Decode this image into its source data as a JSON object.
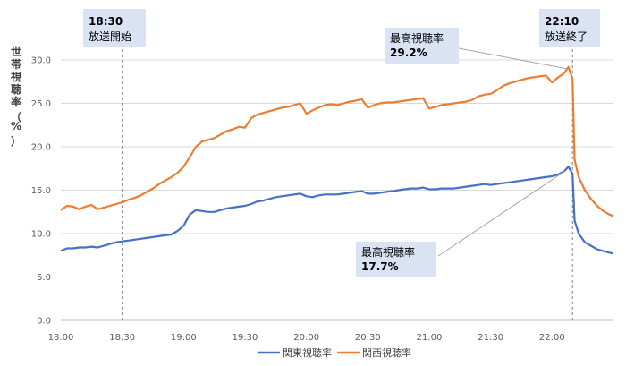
{
  "chart_data": {
    "type": "line",
    "ylabel": "世帯視聴率（%）",
    "ylim": [
      0,
      30
    ],
    "y_ticks": [
      "0.0",
      "5.0",
      "10.0",
      "15.0",
      "20.0",
      "25.0",
      "30.0"
    ],
    "x_ticks": [
      "18:00",
      "18:30",
      "19:00",
      "19:30",
      "20:00",
      "20:30",
      "21:00",
      "21:30",
      "22:00"
    ],
    "grid": true,
    "legend_position": "bottom",
    "series": [
      {
        "name": "関東視聴率",
        "color": "#4472c4",
        "points": [
          [
            "18:00",
            8.0
          ],
          [
            "18:03",
            8.3
          ],
          [
            "18:06",
            8.3
          ],
          [
            "18:09",
            8.4
          ],
          [
            "18:12",
            8.4
          ],
          [
            "18:15",
            8.5
          ],
          [
            "18:18",
            8.4
          ],
          [
            "18:21",
            8.6
          ],
          [
            "18:24",
            8.8
          ],
          [
            "18:27",
            9.0
          ],
          [
            "18:30",
            9.1
          ],
          [
            "18:33",
            9.2
          ],
          [
            "18:36",
            9.3
          ],
          [
            "18:39",
            9.4
          ],
          [
            "18:42",
            9.5
          ],
          [
            "18:45",
            9.6
          ],
          [
            "18:48",
            9.7
          ],
          [
            "18:51",
            9.8
          ],
          [
            "18:54",
            9.9
          ],
          [
            "18:57",
            10.3
          ],
          [
            "19:00",
            10.9
          ],
          [
            "19:03",
            12.2
          ],
          [
            "19:06",
            12.7
          ],
          [
            "19:09",
            12.6
          ],
          [
            "19:12",
            12.5
          ],
          [
            "19:15",
            12.5
          ],
          [
            "19:18",
            12.7
          ],
          [
            "19:21",
            12.9
          ],
          [
            "19:24",
            13.0
          ],
          [
            "19:27",
            13.1
          ],
          [
            "19:30",
            13.2
          ],
          [
            "19:33",
            13.4
          ],
          [
            "19:36",
            13.7
          ],
          [
            "19:39",
            13.8
          ],
          [
            "19:42",
            14.0
          ],
          [
            "19:45",
            14.2
          ],
          [
            "19:48",
            14.3
          ],
          [
            "19:51",
            14.4
          ],
          [
            "19:54",
            14.5
          ],
          [
            "19:57",
            14.6
          ],
          [
            "20:00",
            14.3
          ],
          [
            "20:03",
            14.2
          ],
          [
            "20:06",
            14.4
          ],
          [
            "20:09",
            14.5
          ],
          [
            "20:12",
            14.5
          ],
          [
            "20:15",
            14.5
          ],
          [
            "20:18",
            14.6
          ],
          [
            "20:21",
            14.7
          ],
          [
            "20:24",
            14.8
          ],
          [
            "20:27",
            14.9
          ],
          [
            "20:30",
            14.6
          ],
          [
            "20:33",
            14.6
          ],
          [
            "20:36",
            14.7
          ],
          [
            "20:39",
            14.8
          ],
          [
            "20:42",
            14.9
          ],
          [
            "20:45",
            15.0
          ],
          [
            "20:48",
            15.1
          ],
          [
            "20:51",
            15.2
          ],
          [
            "20:54",
            15.2
          ],
          [
            "20:57",
            15.3
          ],
          [
            "21:00",
            15.1
          ],
          [
            "21:03",
            15.1
          ],
          [
            "21:06",
            15.2
          ],
          [
            "21:09",
            15.2
          ],
          [
            "21:12",
            15.2
          ],
          [
            "21:15",
            15.3
          ],
          [
            "21:18",
            15.4
          ],
          [
            "21:21",
            15.5
          ],
          [
            "21:24",
            15.6
          ],
          [
            "21:27",
            15.7
          ],
          [
            "21:30",
            15.6
          ],
          [
            "21:33",
            15.7
          ],
          [
            "21:36",
            15.8
          ],
          [
            "21:39",
            15.9
          ],
          [
            "21:42",
            16.0
          ],
          [
            "21:45",
            16.1
          ],
          [
            "21:48",
            16.2
          ],
          [
            "21:51",
            16.3
          ],
          [
            "21:54",
            16.4
          ],
          [
            "21:57",
            16.5
          ],
          [
            "22:00",
            16.6
          ],
          [
            "22:03",
            16.8
          ],
          [
            "22:06",
            17.2
          ],
          [
            "22:08",
            17.7
          ],
          [
            "22:10",
            16.9
          ],
          [
            "22:11",
            11.5
          ],
          [
            "22:13",
            10.0
          ],
          [
            "22:16",
            9.0
          ],
          [
            "22:19",
            8.6
          ],
          [
            "22:22",
            8.2
          ],
          [
            "22:25",
            8.0
          ],
          [
            "22:28",
            7.8
          ],
          [
            "22:30",
            7.7
          ]
        ]
      },
      {
        "name": "関西視聴率",
        "color": "#ed7d31",
        "points": [
          [
            "18:00",
            12.7
          ],
          [
            "18:03",
            13.2
          ],
          [
            "18:06",
            13.1
          ],
          [
            "18:09",
            12.8
          ],
          [
            "18:12",
            13.1
          ],
          [
            "18:15",
            13.3
          ],
          [
            "18:18",
            12.8
          ],
          [
            "18:21",
            13.0
          ],
          [
            "18:24",
            13.2
          ],
          [
            "18:27",
            13.4
          ],
          [
            "18:30",
            13.6
          ],
          [
            "18:33",
            13.9
          ],
          [
            "18:36",
            14.1
          ],
          [
            "18:39",
            14.4
          ],
          [
            "18:42",
            14.8
          ],
          [
            "18:45",
            15.2
          ],
          [
            "18:48",
            15.7
          ],
          [
            "18:51",
            16.1
          ],
          [
            "18:54",
            16.5
          ],
          [
            "18:57",
            17.0
          ],
          [
            "19:00",
            17.7
          ],
          [
            "19:03",
            18.8
          ],
          [
            "19:06",
            20.0
          ],
          [
            "19:09",
            20.6
          ],
          [
            "19:12",
            20.8
          ],
          [
            "19:15",
            21.0
          ],
          [
            "19:18",
            21.4
          ],
          [
            "19:21",
            21.8
          ],
          [
            "19:24",
            22.0
          ],
          [
            "19:27",
            22.3
          ],
          [
            "19:30",
            22.2
          ],
          [
            "19:33",
            23.3
          ],
          [
            "19:36",
            23.7
          ],
          [
            "19:39",
            23.9
          ],
          [
            "19:42",
            24.1
          ],
          [
            "19:45",
            24.3
          ],
          [
            "19:48",
            24.5
          ],
          [
            "19:51",
            24.6
          ],
          [
            "19:54",
            24.8
          ],
          [
            "19:57",
            25.0
          ],
          [
            "20:00",
            23.8
          ],
          [
            "20:03",
            24.2
          ],
          [
            "20:06",
            24.5
          ],
          [
            "20:09",
            24.8
          ],
          [
            "20:12",
            24.9
          ],
          [
            "20:15",
            24.8
          ],
          [
            "20:18",
            25.0
          ],
          [
            "20:21",
            25.2
          ],
          [
            "20:24",
            25.3
          ],
          [
            "20:27",
            25.5
          ],
          [
            "20:30",
            24.5
          ],
          [
            "20:33",
            24.8
          ],
          [
            "20:36",
            25.0
          ],
          [
            "20:39",
            25.1
          ],
          [
            "20:42",
            25.1
          ],
          [
            "20:45",
            25.2
          ],
          [
            "20:48",
            25.3
          ],
          [
            "20:51",
            25.4
          ],
          [
            "20:54",
            25.5
          ],
          [
            "20:57",
            25.6
          ],
          [
            "21:00",
            24.4
          ],
          [
            "21:03",
            24.6
          ],
          [
            "21:06",
            24.8
          ],
          [
            "21:09",
            24.9
          ],
          [
            "21:12",
            25.0
          ],
          [
            "21:15",
            25.1
          ],
          [
            "21:18",
            25.2
          ],
          [
            "21:21",
            25.4
          ],
          [
            "21:24",
            25.8
          ],
          [
            "21:27",
            26.0
          ],
          [
            "21:30",
            26.1
          ],
          [
            "21:33",
            26.5
          ],
          [
            "21:36",
            27.0
          ],
          [
            "21:39",
            27.3
          ],
          [
            "21:42",
            27.5
          ],
          [
            "21:45",
            27.7
          ],
          [
            "21:48",
            27.9
          ],
          [
            "21:51",
            28.0
          ],
          [
            "21:54",
            28.1
          ],
          [
            "21:57",
            28.2
          ],
          [
            "22:00",
            27.4
          ],
          [
            "22:03",
            28.0
          ],
          [
            "22:06",
            28.5
          ],
          [
            "22:08",
            29.2
          ],
          [
            "22:10",
            27.8
          ],
          [
            "22:11",
            18.5
          ],
          [
            "22:13",
            16.5
          ],
          [
            "22:16",
            15.0
          ],
          [
            "22:19",
            14.0
          ],
          [
            "22:22",
            13.2
          ],
          [
            "22:25",
            12.6
          ],
          [
            "22:28",
            12.2
          ],
          [
            "22:30",
            12.0
          ]
        ]
      }
    ],
    "annotations": [
      {
        "time": "18:30",
        "line1": "18:30",
        "line2": "放送開始"
      },
      {
        "time": "22:10",
        "line1": "22:10",
        "line2": "放送終了"
      },
      {
        "time": "22:08",
        "series": 1,
        "line1": "最高視聴率",
        "line2": "29.2%"
      },
      {
        "time": "22:08",
        "series": 0,
        "line1": "最高視聴率",
        "line2": "17.7%"
      }
    ]
  }
}
